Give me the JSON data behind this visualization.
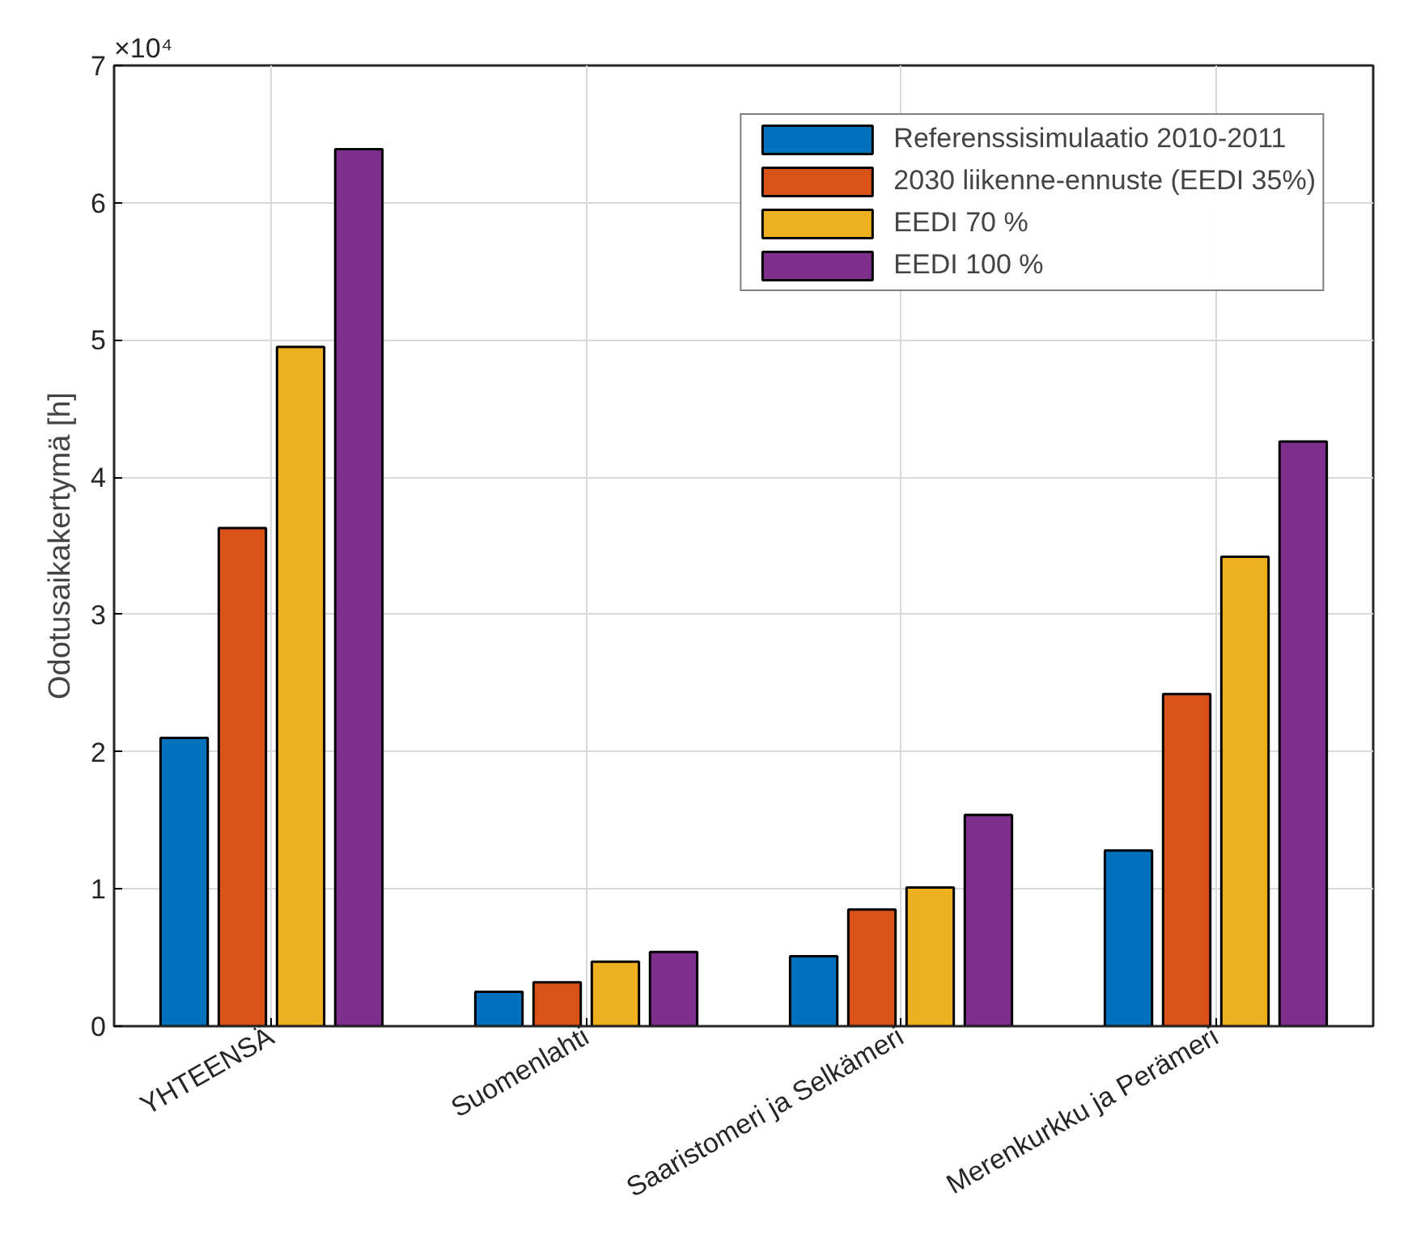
{
  "chart_data": {
    "type": "bar",
    "ylabel": "Odotusaikakertymä [h]",
    "categories": [
      "YHTEENSÄ",
      "Suomenlahti",
      "Saaristomeri ja Selkämeri",
      "Merenkurkku ja Perämeri"
    ],
    "series": [
      {
        "name": "Referenssisimulaatio 2010-2011",
        "color": "#0072bd",
        "values": [
          2.1,
          0.25,
          0.51,
          1.28
        ]
      },
      {
        "name": "2030 liikenne-ennuste (EEDI 35%)",
        "color": "#d95319",
        "values": [
          3.63,
          0.32,
          0.85,
          2.42
        ]
      },
      {
        "name": "EEDI 70 %",
        "color": "#edb120",
        "values": [
          4.95,
          0.47,
          1.01,
          3.42
        ]
      },
      {
        "name": "EEDI 100 %",
        "color": "#7e2f8e",
        "values": [
          6.39,
          0.54,
          1.54,
          4.26
        ]
      }
    ],
    "ylim": [
      0,
      7
    ],
    "yticks": [
      0,
      1,
      2,
      3,
      4,
      5,
      6,
      7
    ],
    "annotations": [
      "×10⁴"
    ],
    "grid": true,
    "legend": "top right"
  }
}
